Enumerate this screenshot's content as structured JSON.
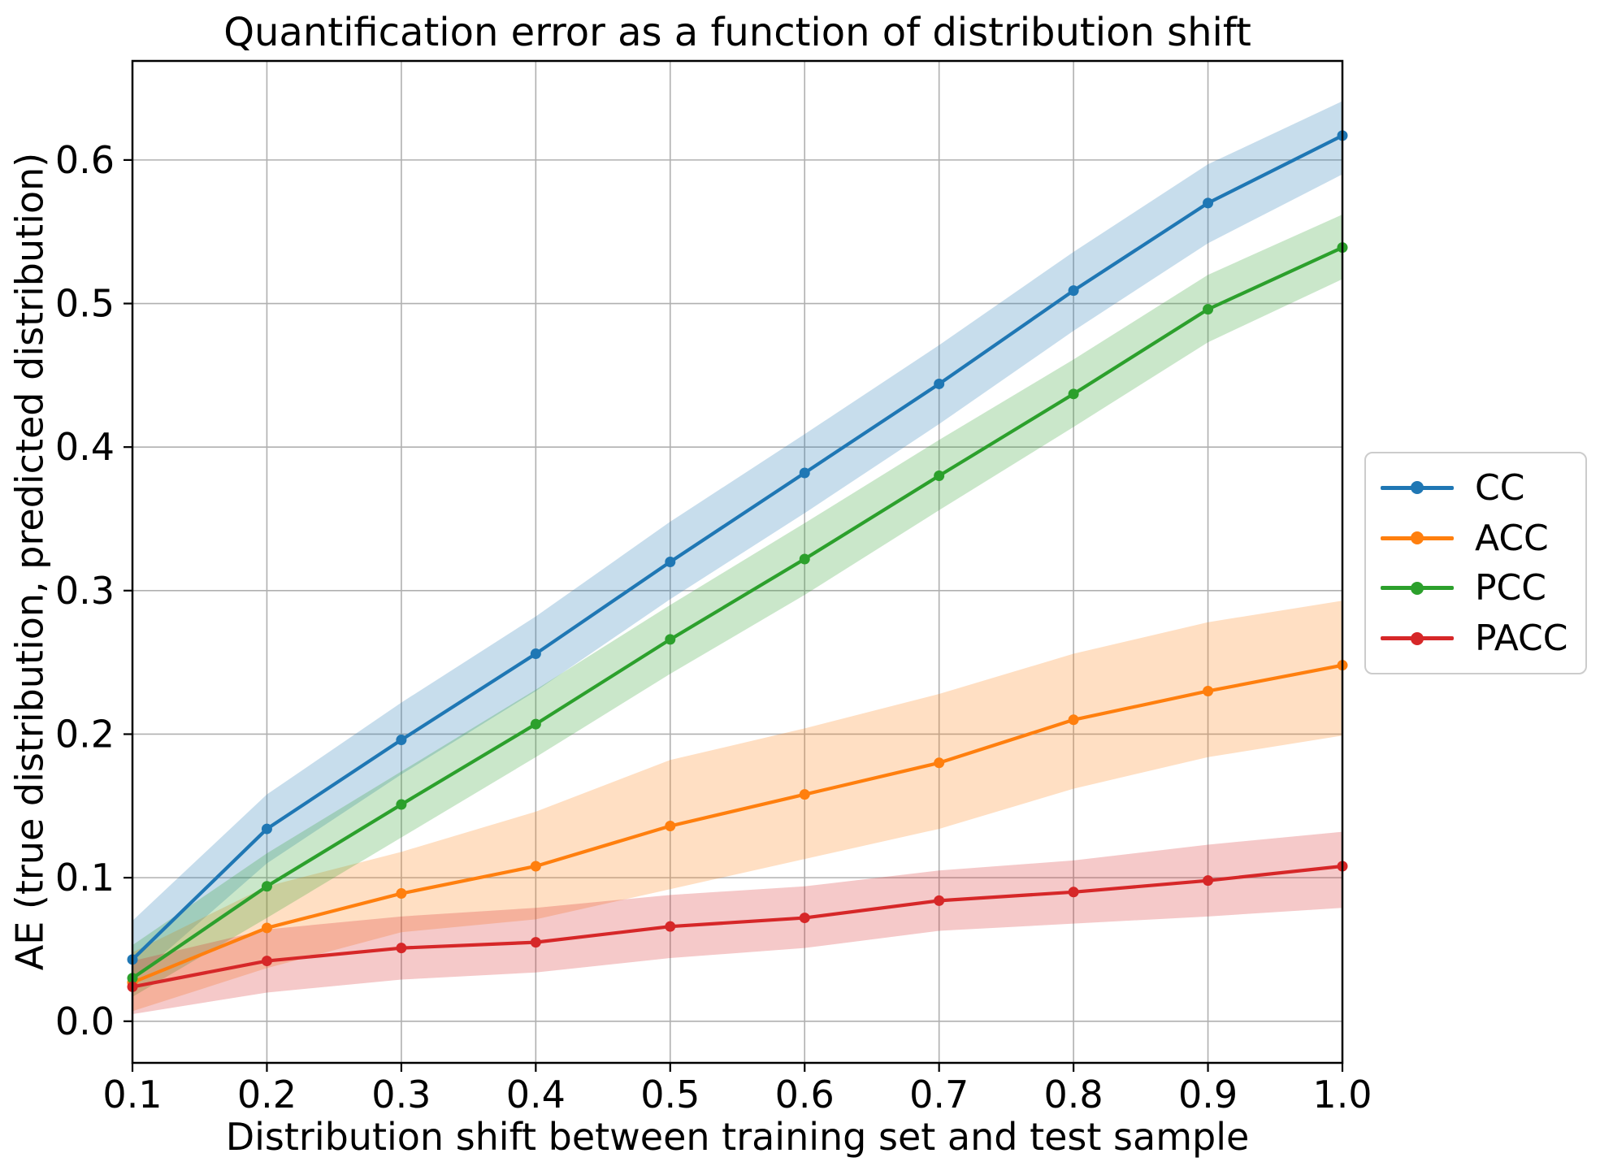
{
  "chart_data": {
    "type": "line",
    "title": "Quantification error as a function of distribution shift",
    "xlabel": "Distribution shift between training set and test sample",
    "ylabel": "AE (true distribution, predicted distribution)",
    "x": [
      0.1,
      0.2,
      0.3,
      0.4,
      0.5,
      0.6,
      0.7,
      0.8,
      0.9,
      1.0
    ],
    "x_tick_labels": [
      "0.1",
      "0.2",
      "0.3",
      "0.4",
      "0.5",
      "0.6",
      "0.7",
      "0.8",
      "0.9",
      "1.0"
    ],
    "y_ticks": [
      0.0,
      0.1,
      0.2,
      0.3,
      0.4,
      0.5,
      0.6
    ],
    "y_tick_labels": [
      "0.0",
      "0.1",
      "0.2",
      "0.3",
      "0.4",
      "0.5",
      "0.6"
    ],
    "xlim": [
      0.1,
      1.0
    ],
    "ylim": [
      -0.029,
      0.669
    ],
    "grid": true,
    "grid_color": "#b0b0b0",
    "band_opacity": 0.25,
    "legend_position": "outside-center-right",
    "series": [
      {
        "name": "CC",
        "color": "#1f77b4",
        "values": [
          0.043,
          0.134,
          0.196,
          0.256,
          0.32,
          0.382,
          0.444,
          0.509,
          0.57,
          0.617
        ],
        "band_lower": [
          0.028,
          0.11,
          0.172,
          0.23,
          0.294,
          0.354,
          0.416,
          0.481,
          0.542,
          0.59
        ],
        "band_upper": [
          0.07,
          0.158,
          0.222,
          0.282,
          0.348,
          0.409,
          0.471,
          0.536,
          0.597,
          0.641
        ]
      },
      {
        "name": "ACC",
        "color": "#ff7f0e",
        "values": [
          0.027,
          0.065,
          0.089,
          0.108,
          0.136,
          0.158,
          0.18,
          0.21,
          0.23,
          0.248
        ],
        "band_lower": [
          0.007,
          0.037,
          0.062,
          0.071,
          0.092,
          0.113,
          0.134,
          0.162,
          0.184,
          0.199
        ],
        "band_upper": [
          0.048,
          0.094,
          0.118,
          0.146,
          0.182,
          0.204,
          0.228,
          0.256,
          0.278,
          0.293
        ]
      },
      {
        "name": "PCC",
        "color": "#2ca02c",
        "values": [
          0.03,
          0.094,
          0.151,
          0.207,
          0.266,
          0.322,
          0.38,
          0.437,
          0.496,
          0.539
        ],
        "band_lower": [
          0.017,
          0.072,
          0.128,
          0.184,
          0.242,
          0.297,
          0.356,
          0.414,
          0.473,
          0.517
        ],
        "band_upper": [
          0.053,
          0.117,
          0.174,
          0.231,
          0.29,
          0.347,
          0.405,
          0.461,
          0.52,
          0.562
        ]
      },
      {
        "name": "PACC",
        "color": "#d62728",
        "values": [
          0.024,
          0.042,
          0.051,
          0.055,
          0.066,
          0.072,
          0.084,
          0.09,
          0.098,
          0.108
        ],
        "band_lower": [
          0.005,
          0.02,
          0.029,
          0.034,
          0.044,
          0.051,
          0.063,
          0.068,
          0.073,
          0.079
        ],
        "band_upper": [
          0.042,
          0.064,
          0.073,
          0.079,
          0.088,
          0.094,
          0.105,
          0.112,
          0.123,
          0.132
        ]
      }
    ]
  }
}
